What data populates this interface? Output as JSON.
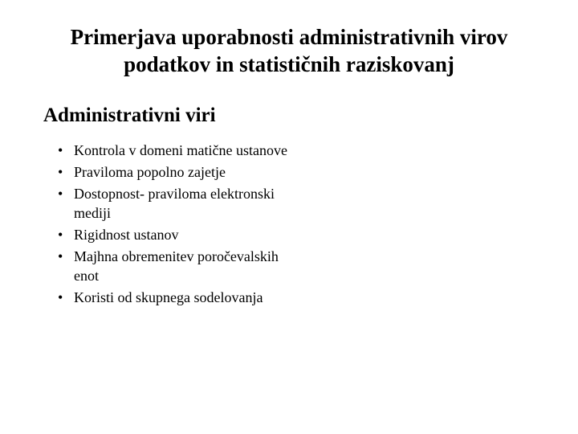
{
  "slide": {
    "title": "Primerjava uporabnosti administrativnih virov podatkov in statističnih raziskovanj",
    "section_heading": "Administrativni viri",
    "bullets": [
      "Kontrola v domeni matične ustanove",
      "Praviloma popolno zajetje",
      "Dostopnost- praviloma elektronski mediji",
      "Rigidnost ustanov",
      "Majhna obremenitev poročevalskih enot",
      "Koristi od skupnega sodelovanja"
    ]
  },
  "style": {
    "background_color": "#ffffff",
    "text_color": "#000000",
    "title_fontsize": 27,
    "heading_fontsize": 25,
    "bullet_fontsize": 18,
    "font_family": "Times New Roman"
  }
}
